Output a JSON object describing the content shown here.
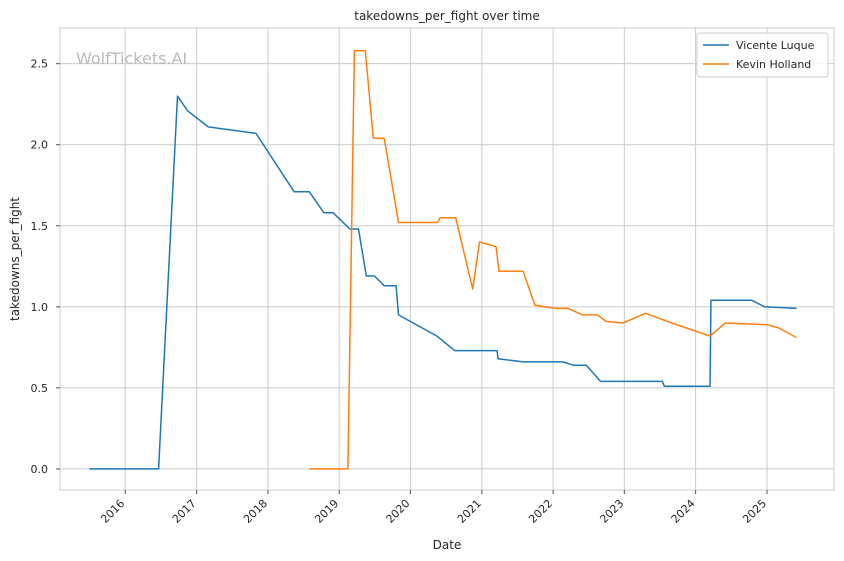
{
  "chart_data": {
    "type": "line",
    "title": "takedowns_per_fight over time",
    "xlabel": "Date",
    "ylabel": "takedowns_per_fight",
    "watermark": "WolfTickets.AI",
    "xlim": [
      "2015-02-01",
      "2025-12-10"
    ],
    "ylim": [
      -0.13,
      2.72
    ],
    "x_ticks": [
      {
        "date": "2016-01-01",
        "label": "2016"
      },
      {
        "date": "2017-01-01",
        "label": "2017"
      },
      {
        "date": "2018-01-01",
        "label": "2018"
      },
      {
        "date": "2019-01-01",
        "label": "2019"
      },
      {
        "date": "2020-01-01",
        "label": "2020"
      },
      {
        "date": "2021-01-01",
        "label": "2021"
      },
      {
        "date": "2022-01-01",
        "label": "2022"
      },
      {
        "date": "2023-01-01",
        "label": "2023"
      },
      {
        "date": "2024-01-01",
        "label": "2024"
      },
      {
        "date": "2025-01-01",
        "label": "2025"
      }
    ],
    "y_ticks": [
      {
        "value": 0.0,
        "label": "0.0"
      },
      {
        "value": 0.5,
        "label": "0.5"
      },
      {
        "value": 1.0,
        "label": "1.0"
      },
      {
        "value": 1.5,
        "label": "1.5"
      },
      {
        "value": 2.0,
        "label": "2.0"
      },
      {
        "value": 2.5,
        "label": "2.5"
      }
    ],
    "grid": true,
    "legend_position": "top-right",
    "series": [
      {
        "name": "Vicente Luque",
        "color": "#1f77b4",
        "points": [
          [
            "2015-07-01",
            0.0
          ],
          [
            "2016-06-20",
            0.0
          ],
          [
            "2016-09-25",
            2.3
          ],
          [
            "2016-11-15",
            2.21
          ],
          [
            "2017-03-01",
            2.11
          ],
          [
            "2017-11-01",
            2.07
          ],
          [
            "2018-05-15",
            1.71
          ],
          [
            "2018-08-01",
            1.71
          ],
          [
            "2018-10-15",
            1.58
          ],
          [
            "2018-12-01",
            1.58
          ],
          [
            "2019-02-25",
            1.48
          ],
          [
            "2019-04-10",
            1.48
          ],
          [
            "2019-05-20",
            1.19
          ],
          [
            "2019-07-01",
            1.19
          ],
          [
            "2019-08-20",
            1.13
          ],
          [
            "2019-10-20",
            1.13
          ],
          [
            "2019-11-01",
            0.95
          ],
          [
            "2020-05-15",
            0.82
          ],
          [
            "2020-08-15",
            0.73
          ],
          [
            "2021-03-20",
            0.73
          ],
          [
            "2021-03-25",
            0.68
          ],
          [
            "2021-08-01",
            0.66
          ],
          [
            "2022-02-20",
            0.66
          ],
          [
            "2022-04-15",
            0.64
          ],
          [
            "2022-06-20",
            0.64
          ],
          [
            "2022-09-01",
            0.54
          ],
          [
            "2023-07-15",
            0.54
          ],
          [
            "2023-07-25",
            0.51
          ],
          [
            "2024-03-15",
            0.51
          ],
          [
            "2024-03-20",
            1.04
          ],
          [
            "2024-10-15",
            1.04
          ],
          [
            "2024-12-20",
            1.0
          ],
          [
            "2025-06-01",
            0.99
          ]
        ]
      },
      {
        "name": "Kevin Holland",
        "color": "#ff7f0e",
        "points": [
          [
            "2018-08-01",
            0.0
          ],
          [
            "2019-02-15",
            0.0
          ],
          [
            "2019-03-20",
            2.58
          ],
          [
            "2019-05-15",
            2.58
          ],
          [
            "2019-06-25",
            2.04
          ],
          [
            "2019-08-20",
            2.04
          ],
          [
            "2019-11-01",
            1.52
          ],
          [
            "2020-05-20",
            1.52
          ],
          [
            "2020-06-01",
            1.55
          ],
          [
            "2020-08-20",
            1.55
          ],
          [
            "2020-11-15",
            1.11
          ],
          [
            "2020-12-20",
            1.4
          ],
          [
            "2021-03-15",
            1.37
          ],
          [
            "2021-03-30",
            1.22
          ],
          [
            "2021-08-01",
            1.22
          ],
          [
            "2021-09-30",
            1.01
          ],
          [
            "2022-01-15",
            0.99
          ],
          [
            "2022-03-20",
            0.99
          ],
          [
            "2022-06-01",
            0.95
          ],
          [
            "2022-08-15",
            0.95
          ],
          [
            "2022-09-30",
            0.91
          ],
          [
            "2022-12-25",
            0.9
          ],
          [
            "2023-04-20",
            0.96
          ],
          [
            "2023-09-01",
            0.9
          ],
          [
            "2024-03-15",
            0.82
          ],
          [
            "2024-06-01",
            0.9
          ],
          [
            "2025-01-01",
            0.89
          ],
          [
            "2025-03-01",
            0.87
          ],
          [
            "2025-06-01",
            0.81
          ]
        ]
      }
    ]
  }
}
